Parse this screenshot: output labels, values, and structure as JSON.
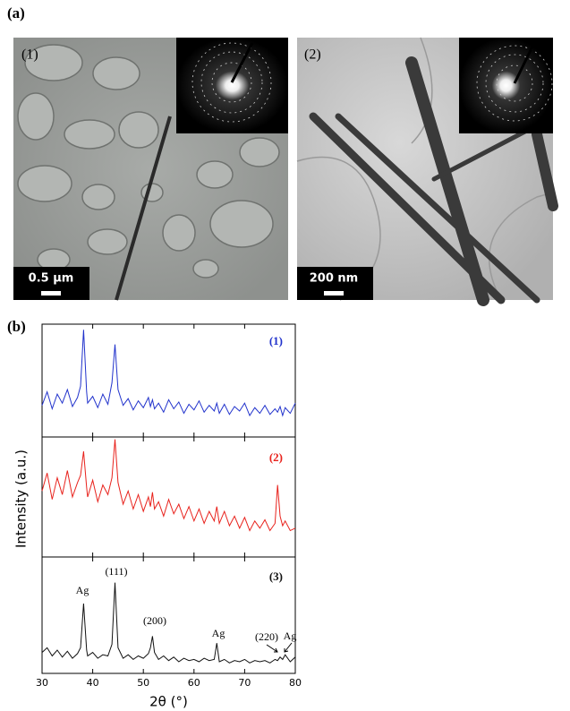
{
  "figure": {
    "label_a": "(a)",
    "label_b": "(b)",
    "panels": [
      {
        "label": "(1)",
        "scale_bar": "0.5 µm"
      },
      {
        "label": "(2)",
        "scale_bar": "200 nm"
      }
    ]
  },
  "chart_data": [
    {
      "type": "line",
      "xlim": [
        30,
        80
      ],
      "ylim": [
        0,
        100
      ],
      "x": [
        30,
        31,
        32,
        33,
        34,
        35,
        36,
        37,
        37.6,
        38.2,
        38.8,
        39,
        40,
        41,
        42,
        43,
        43.8,
        44.4,
        45,
        46,
        47,
        48,
        49,
        50,
        51,
        51.4,
        51.8,
        52.2,
        53,
        54,
        55,
        56,
        57,
        58,
        59,
        60,
        61,
        62,
        63,
        64,
        64.5,
        65,
        66,
        67,
        68,
        69,
        70,
        71,
        72,
        73,
        74,
        75,
        76,
        76.5,
        77,
        77.5,
        78,
        79,
        80
      ],
      "series": [
        {
          "name": "(1)",
          "color": "#2233cc",
          "values": [
            28,
            40,
            25,
            38,
            30,
            42,
            27,
            35,
            45,
            95,
            40,
            30,
            36,
            26,
            38,
            29,
            48,
            82,
            42,
            28,
            34,
            24,
            32,
            26,
            35,
            27,
            33,
            25,
            30,
            22,
            33,
            25,
            31,
            21,
            29,
            24,
            32,
            22,
            28,
            23,
            30,
            21,
            29,
            20,
            27,
            23,
            30,
            19,
            26,
            21,
            28,
            20,
            25,
            22,
            27,
            19,
            26,
            21,
            30
          ]
        }
      ]
    },
    {
      "type": "line",
      "xlim": [
        30,
        80
      ],
      "ylim": [
        0,
        100
      ],
      "ylabel": "Intensity (a.u.)",
      "x": [
        30,
        31,
        32,
        33,
        34,
        35,
        36,
        37,
        37.6,
        38.2,
        38.8,
        39,
        40,
        41,
        42,
        43,
        43.8,
        44.4,
        45,
        46,
        47,
        48,
        49,
        50,
        51,
        51.4,
        51.8,
        52.2,
        53,
        54,
        55,
        56,
        57,
        58,
        59,
        60,
        61,
        62,
        63,
        64,
        64.5,
        65,
        66,
        67,
        68,
        69,
        70,
        71,
        72,
        73,
        74,
        75,
        76,
        76.5,
        77,
        77.5,
        78,
        79,
        80
      ],
      "series": [
        {
          "name": "(2)",
          "color": "#e8221c",
          "values": [
            55,
            70,
            48,
            66,
            52,
            72,
            50,
            62,
            68,
            88,
            58,
            50,
            64,
            46,
            60,
            52,
            66,
            98,
            62,
            44,
            55,
            40,
            52,
            38,
            50,
            42,
            54,
            40,
            46,
            34,
            48,
            36,
            44,
            32,
            42,
            30,
            40,
            28,
            38,
            30,
            42,
            28,
            38,
            26,
            34,
            24,
            33,
            22,
            30,
            24,
            31,
            22,
            28,
            60,
            34,
            26,
            30,
            22,
            24
          ]
        }
      ]
    },
    {
      "type": "line",
      "xlim": [
        30,
        80
      ],
      "ylim": [
        0,
        100
      ],
      "xlabel": "2θ (°)",
      "xticks": [
        30,
        40,
        50,
        60,
        70,
        80
      ],
      "annotations": [
        "Ag",
        "(111)",
        "(200)",
        "Ag",
        "(220)",
        "Ag"
      ],
      "x": [
        30,
        31,
        32,
        33,
        34,
        35,
        36,
        37,
        37.6,
        38.2,
        38.8,
        39,
        40,
        41,
        42,
        43,
        43.8,
        44.4,
        45,
        46,
        47,
        48,
        49,
        50,
        51,
        51.4,
        51.8,
        52.2,
        53,
        54,
        55,
        56,
        57,
        58,
        59,
        60,
        61,
        62,
        63,
        64,
        64.5,
        65,
        66,
        67,
        68,
        69,
        70,
        71,
        72,
        73,
        74,
        75,
        76,
        76.5,
        77,
        77.5,
        78,
        79,
        80
      ],
      "series": [
        {
          "name": "(3)",
          "color": "#111111",
          "values": [
            18,
            22,
            15,
            20,
            14,
            19,
            13,
            17,
            22,
            60,
            20,
            15,
            18,
            13,
            16,
            15,
            25,
            78,
            22,
            13,
            16,
            12,
            15,
            13,
            17,
            22,
            32,
            18,
            12,
            15,
            11,
            14,
            10,
            13,
            11,
            12,
            10,
            13,
            11,
            12,
            26,
            10,
            12,
            9,
            11,
            10,
            12,
            9,
            11,
            10,
            11,
            9,
            12,
            11,
            14,
            12,
            16,
            10,
            14
          ]
        }
      ]
    }
  ]
}
